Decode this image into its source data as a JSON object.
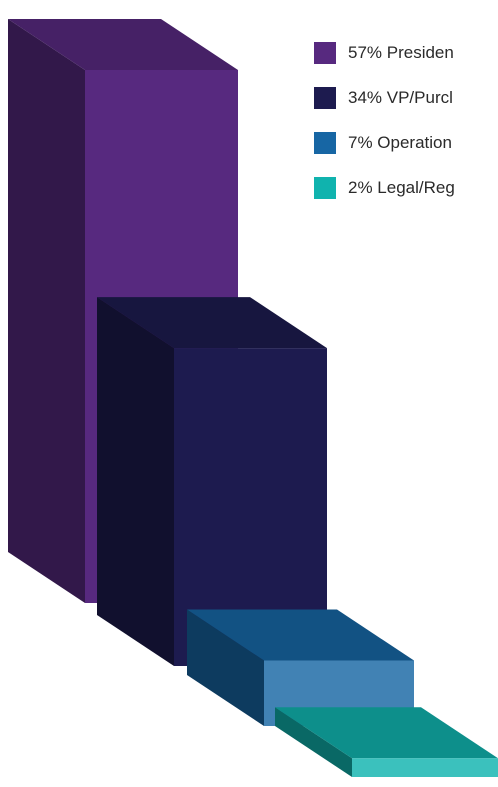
{
  "chart_data": {
    "type": "bar",
    "categories": [
      "Presiden",
      "VP/Purcl",
      "Operation",
      "Legal/Reg"
    ],
    "values": [
      57,
      34,
      7,
      2
    ],
    "legend_position": "top-right",
    "grid": false,
    "style": "3d",
    "colors": [
      "#57297f",
      "#1d1b4f",
      "#1766a4",
      "#10b3ae"
    ]
  },
  "legend": {
    "items": [
      {
        "label": "57% Presiden",
        "color": "#57297f"
      },
      {
        "label": "34% VP/Purcl",
        "color": "#1d1b4f"
      },
      {
        "label": "7% Operation",
        "color": "#1766a4"
      },
      {
        "label": "2% Legal/Reg",
        "color": "#10b3ae"
      }
    ]
  }
}
